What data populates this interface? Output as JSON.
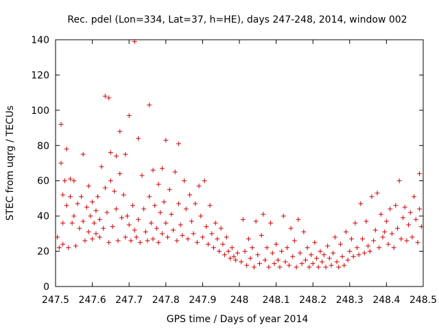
{
  "chart_data": {
    "type": "scatter",
    "title": "Rec. pdel (Lon=334, Lat=37, h=HE), days 247-248, 2014, window 002",
    "xlabel": "GPS time / Days of year 2014",
    "ylabel": "STEC from uqrg / TECUs",
    "xlim": [
      247.5,
      248.5
    ],
    "ylim": [
      0,
      140
    ],
    "xticks": [
      247.5,
      247.6,
      247.7,
      247.8,
      247.9,
      248,
      248.1,
      248.2,
      248.3,
      248.4,
      248.5
    ],
    "xtick_labels": [
      "247.5",
      "247.6",
      "247.7",
      "247.8",
      "247.9",
      "248",
      "248.1",
      "248.2",
      "248.3",
      "248.4",
      "248.5"
    ],
    "yticks": [
      0,
      20,
      40,
      60,
      80,
      100,
      120,
      140
    ],
    "ytick_labels": [
      "0",
      "20",
      "40",
      "60",
      "80",
      "100",
      "120",
      "140"
    ],
    "grid": false,
    "legend": "none",
    "marker": "plus",
    "color": "#cc0000",
    "series": [
      {
        "points": [
          [
            247.505,
            28
          ],
          [
            247.51,
            22
          ],
          [
            247.515,
            92
          ],
          [
            247.515,
            70
          ],
          [
            247.52,
            52
          ],
          [
            247.52,
            36
          ],
          [
            247.52,
            24
          ],
          [
            247.525,
            60
          ],
          [
            247.53,
            78
          ],
          [
            247.53,
            46
          ],
          [
            247.535,
            22
          ],
          [
            247.54,
            61
          ],
          [
            247.54,
            51
          ],
          [
            247.545,
            36
          ],
          [
            247.55,
            60
          ],
          [
            247.55,
            40
          ],
          [
            247.555,
            23
          ],
          [
            247.56,
            47
          ],
          [
            247.565,
            33
          ],
          [
            247.57,
            51
          ],
          [
            247.575,
            75
          ],
          [
            247.575,
            37
          ],
          [
            247.58,
            26
          ],
          [
            247.585,
            45
          ],
          [
            247.59,
            57
          ],
          [
            247.59,
            31
          ],
          [
            247.595,
            40
          ],
          [
            247.6,
            48
          ],
          [
            247.6,
            27
          ],
          [
            247.605,
            36
          ],
          [
            247.61,
            43
          ],
          [
            247.61,
            30
          ],
          [
            247.615,
            51
          ],
          [
            247.62,
            38
          ],
          [
            247.62,
            28
          ],
          [
            247.625,
            68
          ],
          [
            247.63,
            33
          ],
          [
            247.635,
            108
          ],
          [
            247.635,
            56
          ],
          [
            247.64,
            42
          ],
          [
            247.645,
            107
          ],
          [
            247.645,
            25
          ],
          [
            247.65,
            76
          ],
          [
            247.65,
            60
          ],
          [
            247.655,
            34
          ],
          [
            247.66,
            54
          ],
          [
            247.665,
            74
          ],
          [
            247.665,
            44
          ],
          [
            247.67,
            26
          ],
          [
            247.675,
            88
          ],
          [
            247.675,
            64
          ],
          [
            247.68,
            39
          ],
          [
            247.685,
            52
          ],
          [
            247.69,
            75
          ],
          [
            247.69,
            28
          ],
          [
            247.695,
            40
          ],
          [
            247.7,
            97
          ],
          [
            247.7,
            35
          ],
          [
            247.705,
            26
          ],
          [
            247.71,
            46
          ],
          [
            247.715,
            139
          ],
          [
            247.715,
            32
          ],
          [
            247.72,
            28
          ],
          [
            247.725,
            84
          ],
          [
            247.725,
            38
          ],
          [
            247.73,
            25
          ],
          [
            247.735,
            63
          ],
          [
            247.74,
            44
          ],
          [
            247.745,
            31
          ],
          [
            247.75,
            26
          ],
          [
            247.755,
            103
          ],
          [
            247.755,
            51
          ],
          [
            247.76,
            36
          ],
          [
            247.765,
            66
          ],
          [
            247.765,
            27
          ],
          [
            247.77,
            46
          ],
          [
            247.775,
            33
          ],
          [
            247.78,
            58
          ],
          [
            247.78,
            25
          ],
          [
            247.785,
            42
          ],
          [
            247.79,
            67
          ],
          [
            247.79,
            30
          ],
          [
            247.795,
            48
          ],
          [
            247.8,
            83
          ],
          [
            247.8,
            36
          ],
          [
            247.805,
            28
          ],
          [
            247.81,
            55
          ],
          [
            247.815,
            41
          ],
          [
            247.82,
            32
          ],
          [
            247.825,
            65
          ],
          [
            247.83,
            26
          ],
          [
            247.835,
            81
          ],
          [
            247.835,
            47
          ],
          [
            247.84,
            35
          ],
          [
            247.845,
            29
          ],
          [
            247.85,
            60
          ],
          [
            247.855,
            44
          ],
          [
            247.86,
            27
          ],
          [
            247.865,
            52
          ],
          [
            247.87,
            37
          ],
          [
            247.875,
            30
          ],
          [
            247.88,
            47
          ],
          [
            247.885,
            25
          ],
          [
            247.89,
            57
          ],
          [
            247.895,
            40
          ],
          [
            247.9,
            28
          ],
          [
            247.905,
            60
          ],
          [
            247.91,
            34
          ],
          [
            247.915,
            24
          ],
          [
            247.92,
            46
          ],
          [
            247.925,
            30
          ],
          [
            247.93,
            22
          ],
          [
            247.935,
            36
          ],
          [
            247.94,
            27
          ],
          [
            247.945,
            20
          ],
          [
            247.95,
            33
          ],
          [
            247.955,
            24
          ],
          [
            247.96,
            18
          ],
          [
            247.965,
            28
          ],
          [
            247.97,
            20
          ],
          [
            247.975,
            16
          ],
          [
            247.98,
            22
          ],
          [
            247.985,
            17
          ],
          [
            247.99,
            15
          ],
          [
            247.995,
            19
          ],
          [
            248.005,
            14
          ],
          [
            248.01,
            38
          ],
          [
            248.015,
            20
          ],
          [
            248.02,
            12
          ],
          [
            248.025,
            27
          ],
          [
            248.03,
            16
          ],
          [
            248.035,
            22
          ],
          [
            248.04,
            11
          ],
          [
            248.045,
            37
          ],
          [
            248.05,
            18
          ],
          [
            248.055,
            13
          ],
          [
            248.06,
            29
          ],
          [
            248.065,
            41
          ],
          [
            248.07,
            15
          ],
          [
            248.075,
            22
          ],
          [
            248.08,
            11
          ],
          [
            248.085,
            36
          ],
          [
            248.09,
            19
          ],
          [
            248.095,
            13
          ],
          [
            248.1,
            24
          ],
          [
            248.105,
            15
          ],
          [
            248.11,
            11
          ],
          [
            248.115,
            20
          ],
          [
            248.12,
            40
          ],
          [
            248.125,
            14
          ],
          [
            248.13,
            22
          ],
          [
            248.135,
            12
          ],
          [
            248.14,
            33
          ],
          [
            248.145,
            17
          ],
          [
            248.15,
            26
          ],
          [
            248.155,
            11
          ],
          [
            248.16,
            38
          ],
          [
            248.165,
            19
          ],
          [
            248.17,
            13
          ],
          [
            248.175,
            31
          ],
          [
            248.18,
            15
          ],
          [
            248.185,
            22
          ],
          [
            248.19,
            11
          ],
          [
            248.195,
            18
          ],
          [
            248.2,
            13
          ],
          [
            248.205,
            25
          ],
          [
            248.21,
            16
          ],
          [
            248.215,
            11
          ],
          [
            248.22,
            20
          ],
          [
            248.225,
            14
          ],
          [
            248.23,
            18
          ],
          [
            248.235,
            11
          ],
          [
            248.24,
            23
          ],
          [
            248.245,
            16
          ],
          [
            248.25,
            12
          ],
          [
            248.255,
            19
          ],
          [
            248.26,
            28
          ],
          [
            248.265,
            14
          ],
          [
            248.27,
            11
          ],
          [
            248.275,
            24
          ],
          [
            248.28,
            17
          ],
          [
            248.285,
            12
          ],
          [
            248.29,
            31
          ],
          [
            248.295,
            15
          ],
          [
            248.3,
            20
          ],
          [
            248.305,
            27
          ],
          [
            248.31,
            17
          ],
          [
            248.315,
            36
          ],
          [
            248.32,
            22
          ],
          [
            248.325,
            18
          ],
          [
            248.33,
            47
          ],
          [
            248.335,
            27
          ],
          [
            248.34,
            19
          ],
          [
            248.345,
            37
          ],
          [
            248.35,
            23
          ],
          [
            248.355,
            20
          ],
          [
            248.36,
            51
          ],
          [
            248.365,
            26
          ],
          [
            248.37,
            32
          ],
          [
            248.375,
            53
          ],
          [
            248.38,
            22
          ],
          [
            248.385,
            41
          ],
          [
            248.39,
            28
          ],
          [
            248.395,
            31
          ],
          [
            248.4,
            37
          ],
          [
            248.405,
            24
          ],
          [
            248.41,
            44
          ],
          [
            248.415,
            30
          ],
          [
            248.42,
            22
          ],
          [
            248.425,
            46
          ],
          [
            248.43,
            33
          ],
          [
            248.435,
            60
          ],
          [
            248.44,
            27
          ],
          [
            248.445,
            39
          ],
          [
            248.45,
            45
          ],
          [
            248.455,
            26
          ],
          [
            248.46,
            35
          ],
          [
            248.465,
            42
          ],
          [
            248.47,
            28
          ],
          [
            248.475,
            51
          ],
          [
            248.48,
            38
          ],
          [
            248.485,
            25
          ],
          [
            248.49,
            64
          ],
          [
            248.49,
            44
          ],
          [
            248.495,
            34
          ]
        ]
      }
    ]
  }
}
